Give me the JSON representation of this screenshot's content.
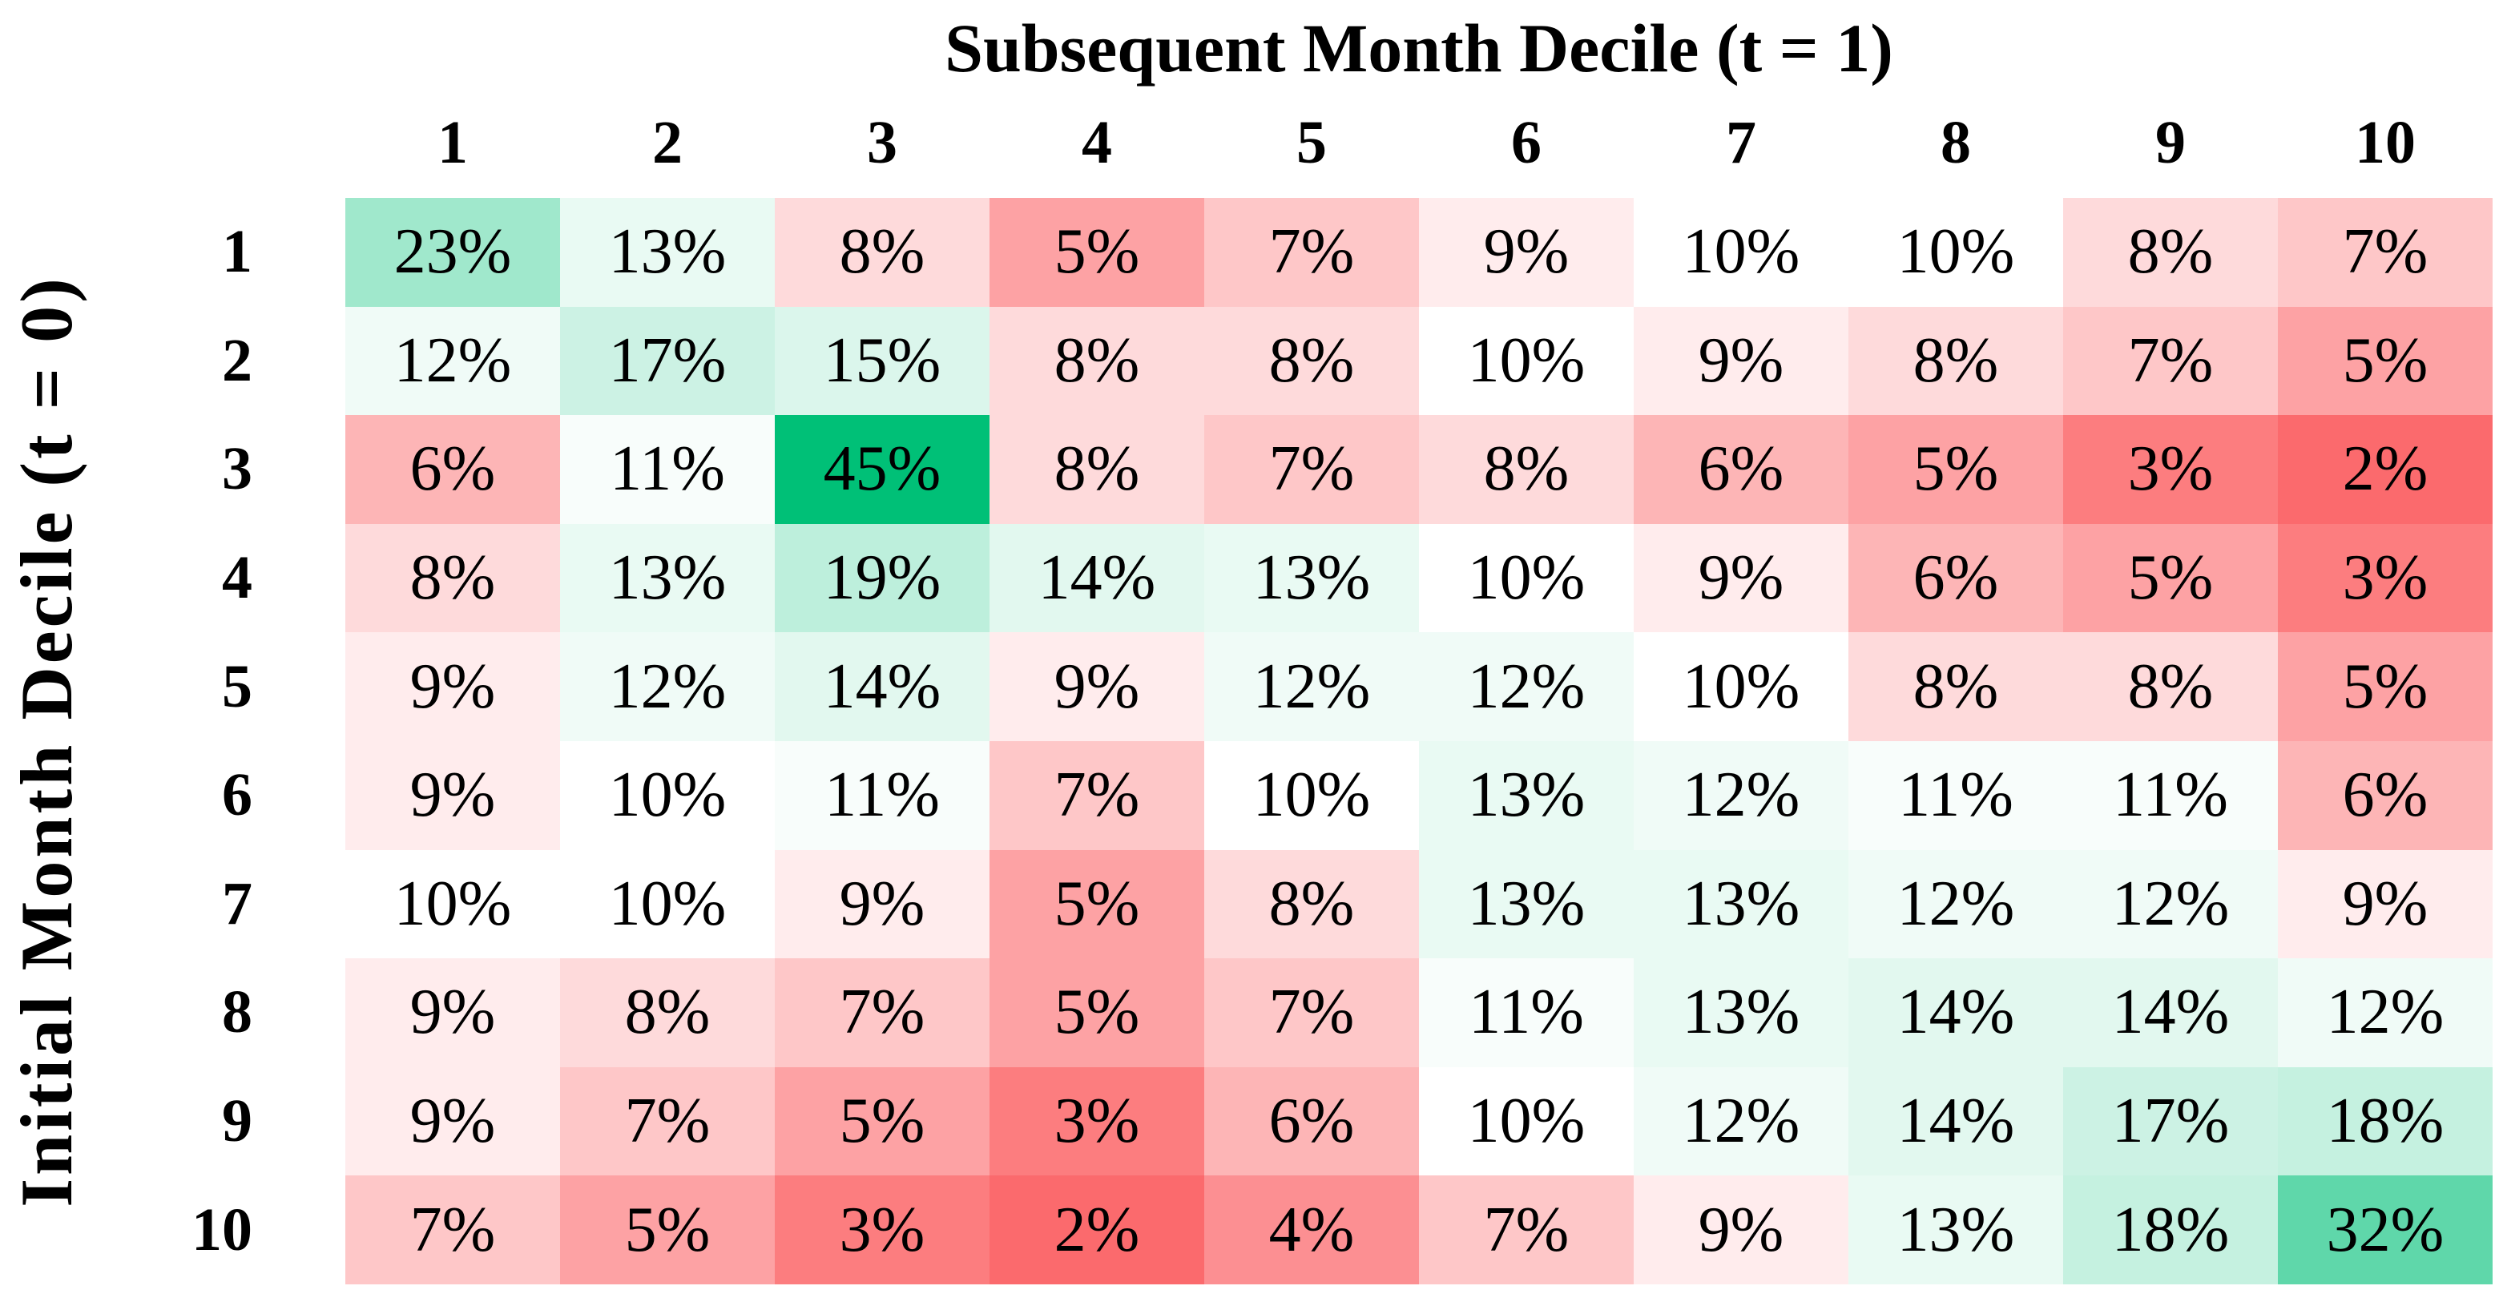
{
  "chart_data": {
    "type": "heatmap",
    "title": "Subsequent Month Decile (t = 1)",
    "y_axis_title": "Initial Month Decile (t = 0)",
    "columns": [
      "1",
      "2",
      "3",
      "4",
      "5",
      "6",
      "7",
      "8",
      "9",
      "10"
    ],
    "rows": [
      "1",
      "2",
      "3",
      "4",
      "5",
      "6",
      "7",
      "8",
      "9",
      "10"
    ],
    "values_percent": [
      [
        23,
        13,
        8,
        5,
        7,
        9,
        10,
        10,
        8,
        7
      ],
      [
        12,
        17,
        15,
        8,
        8,
        10,
        9,
        8,
        7,
        5
      ],
      [
        6,
        11,
        45,
        8,
        7,
        8,
        6,
        5,
        3,
        2
      ],
      [
        8,
        13,
        19,
        14,
        13,
        10,
        9,
        6,
        5,
        3
      ],
      [
        9,
        12,
        14,
        9,
        12,
        12,
        10,
        8,
        8,
        5
      ],
      [
        9,
        10,
        11,
        7,
        10,
        13,
        12,
        11,
        11,
        6
      ],
      [
        10,
        10,
        9,
        5,
        8,
        13,
        13,
        12,
        12,
        9
      ],
      [
        9,
        8,
        7,
        5,
        7,
        11,
        13,
        14,
        14,
        12
      ],
      [
        9,
        7,
        5,
        3,
        6,
        10,
        12,
        14,
        17,
        18
      ],
      [
        7,
        5,
        3,
        2,
        4,
        7,
        9,
        13,
        18,
        32
      ]
    ],
    "cell_label_suffix": "%",
    "color_scale": {
      "min_value": 2,
      "mid_value": 10,
      "max_value": 45,
      "min_color": "#FB6A6D",
      "mid_color": "#FFFFFF",
      "max_color": "#00C077"
    },
    "text_color": "#000000",
    "grid": false,
    "legend": "none"
  }
}
